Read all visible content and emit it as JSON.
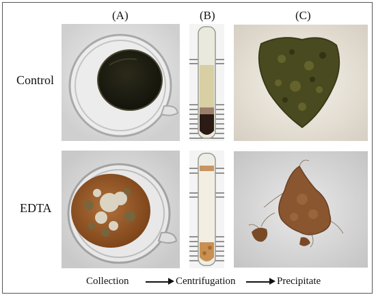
{
  "columns": {
    "a": "(A)",
    "b": "(B)",
    "c": "(C)"
  },
  "rows": {
    "control": "Control",
    "edta": "EDTA"
  },
  "flow": {
    "step1": "Collection",
    "step2": "Centrifugation",
    "step3": "Precipitate"
  }
}
